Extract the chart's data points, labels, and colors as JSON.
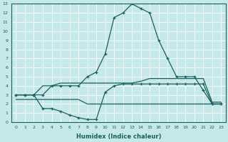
{
  "xlabel": "Humidex (Indice chaleur)",
  "xlim": [
    -0.5,
    23.5
  ],
  "ylim": [
    0,
    13
  ],
  "xticks": [
    0,
    1,
    2,
    3,
    4,
    5,
    6,
    7,
    8,
    9,
    10,
    11,
    12,
    13,
    14,
    15,
    16,
    17,
    18,
    19,
    20,
    21,
    22,
    23
  ],
  "yticks": [
    0,
    1,
    2,
    3,
    4,
    5,
    6,
    7,
    8,
    9,
    10,
    11,
    12,
    13
  ],
  "bg_color": "#c5e8e8",
  "grid_color": "#ffffff",
  "line_color": "#1a6060",
  "line1_x": [
    0,
    1,
    2,
    3,
    4,
    5,
    6,
    7,
    8,
    9,
    10,
    11,
    12,
    13,
    14,
    15,
    16,
    17,
    18,
    19,
    20,
    21,
    22,
    23
  ],
  "line1_y": [
    3,
    3,
    3,
    3,
    4,
    4,
    4,
    4,
    5,
    5.5,
    7.5,
    11.5,
    12,
    13,
    12.5,
    12,
    9,
    7,
    5,
    5,
    5,
    3.5,
    2,
    2
  ],
  "line2_x": [
    0,
    1,
    2,
    3,
    4,
    5,
    6,
    7,
    8,
    9,
    10,
    11,
    12,
    13,
    14,
    15,
    16,
    17,
    18,
    19,
    20,
    21,
    22,
    23
  ],
  "line2_y": [
    3,
    3,
    3,
    4,
    4,
    4.3,
    4.3,
    4.3,
    4.3,
    4.3,
    4.3,
    4.3,
    4.3,
    4.3,
    4.5,
    4.8,
    4.8,
    4.8,
    4.8,
    4.8,
    4.8,
    4.8,
    2.2,
    2.2
  ],
  "line3_x": [
    0,
    1,
    2,
    3,
    4,
    5,
    6,
    7,
    8,
    9,
    10,
    11,
    12,
    13,
    14,
    15,
    16,
    17,
    18,
    19,
    20,
    21,
    22,
    23
  ],
  "line3_y": [
    3,
    3,
    3,
    1.5,
    1.5,
    1.2,
    0.8,
    0.5,
    0.3,
    0.3,
    3.3,
    4,
    4.2,
    4.2,
    4.2,
    4.2,
    4.2,
    4.2,
    4.2,
    4.2,
    4.2,
    4.2,
    2,
    2
  ],
  "line4_x": [
    0,
    1,
    2,
    3,
    4,
    5,
    6,
    7,
    8,
    9,
    10,
    11,
    12,
    13,
    14,
    15,
    16,
    17,
    18,
    19,
    20,
    21,
    22,
    23
  ],
  "line4_y": [
    2.5,
    2.5,
    2.5,
    2.5,
    2.5,
    2.5,
    2.5,
    2.5,
    2,
    2,
    2,
    2,
    2,
    2,
    2,
    2,
    2,
    2,
    2,
    2,
    2,
    2,
    2,
    2
  ]
}
